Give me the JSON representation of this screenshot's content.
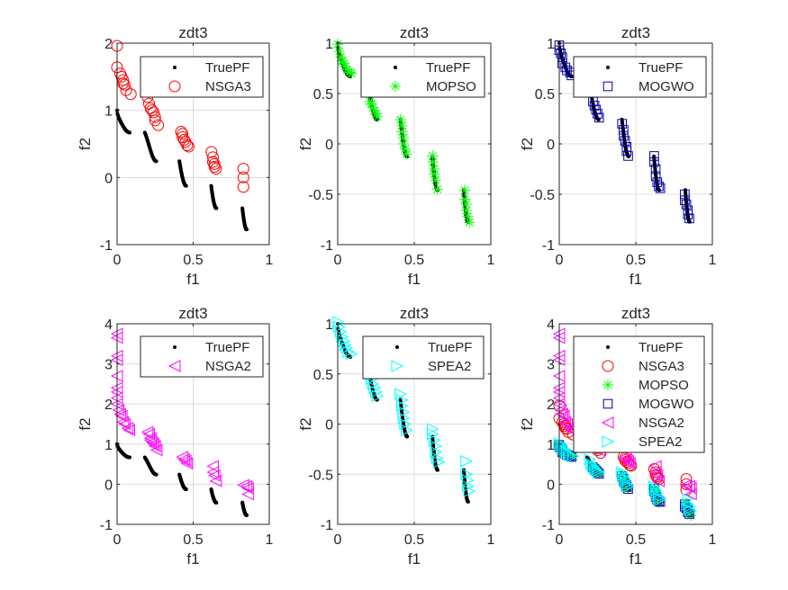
{
  "figure": {
    "background": "#ffffff"
  },
  "true_pf": {
    "label": "TruePF",
    "color": "#000000",
    "function": "f2 = 1 - sqrt(f1) - f1*sin(10*pi*f1)",
    "segments_f1": [
      [
        0.0,
        0.083
      ],
      [
        0.1822,
        0.2578
      ],
      [
        0.4093,
        0.4539
      ],
      [
        0.6184,
        0.6525
      ],
      [
        0.8233,
        0.8518
      ]
    ]
  },
  "algorithms": {
    "NSGA3": {
      "label": "NSGA3",
      "marker": "circle",
      "color": "#ff0000",
      "points": [
        [
          0.0,
          1.96
        ],
        [
          0.0,
          1.64
        ],
        [
          0.02,
          1.55
        ],
        [
          0.03,
          1.5
        ],
        [
          0.04,
          1.45
        ],
        [
          0.04,
          1.4
        ],
        [
          0.05,
          1.38
        ],
        [
          0.06,
          1.3
        ],
        [
          0.09,
          1.24
        ],
        [
          0.2,
          1.2
        ],
        [
          0.21,
          1.1
        ],
        [
          0.22,
          1.03
        ],
        [
          0.23,
          1.0
        ],
        [
          0.24,
          0.97
        ],
        [
          0.25,
          0.9
        ],
        [
          0.25,
          0.85
        ],
        [
          0.27,
          0.78
        ],
        [
          0.42,
          0.68
        ],
        [
          0.43,
          0.65
        ],
        [
          0.43,
          0.6
        ],
        [
          0.44,
          0.56
        ],
        [
          0.45,
          0.53
        ],
        [
          0.46,
          0.48
        ],
        [
          0.47,
          0.46
        ],
        [
          0.62,
          0.38
        ],
        [
          0.63,
          0.3
        ],
        [
          0.63,
          0.23
        ],
        [
          0.64,
          0.2
        ],
        [
          0.64,
          0.16
        ],
        [
          0.65,
          0.13
        ],
        [
          0.83,
          0.13
        ],
        [
          0.83,
          0.0
        ],
        [
          0.83,
          -0.14
        ]
      ]
    },
    "MOPSO": {
      "label": "MOPSO",
      "marker": "star",
      "color": "#00ff00",
      "points": [
        [
          0.0,
          0.99
        ],
        [
          0.01,
          0.92
        ],
        [
          0.02,
          0.86
        ],
        [
          0.03,
          0.82
        ],
        [
          0.04,
          0.8
        ],
        [
          0.05,
          0.77
        ],
        [
          0.06,
          0.74
        ],
        [
          0.08,
          0.71
        ],
        [
          0.09,
          0.7
        ],
        [
          0.21,
          0.42
        ],
        [
          0.22,
          0.4
        ],
        [
          0.23,
          0.36
        ],
        [
          0.24,
          0.33
        ],
        [
          0.25,
          0.3
        ],
        [
          0.26,
          0.27
        ],
        [
          0.41,
          0.24
        ],
        [
          0.42,
          0.18
        ],
        [
          0.42,
          0.12
        ],
        [
          0.43,
          0.06
        ],
        [
          0.43,
          0.0
        ],
        [
          0.44,
          -0.05
        ],
        [
          0.45,
          -0.1
        ],
        [
          0.62,
          -0.12
        ],
        [
          0.62,
          -0.18
        ],
        [
          0.63,
          -0.25
        ],
        [
          0.63,
          -0.3
        ],
        [
          0.64,
          -0.36
        ],
        [
          0.65,
          -0.45
        ],
        [
          0.83,
          -0.46
        ],
        [
          0.83,
          -0.55
        ],
        [
          0.84,
          -0.6
        ],
        [
          0.84,
          -0.66
        ],
        [
          0.85,
          -0.72
        ],
        [
          0.86,
          -0.78
        ]
      ]
    },
    "MOGWO": {
      "label": "MOGWO",
      "marker": "square",
      "color": "#0000aa",
      "points": [
        [
          0.0,
          0.98
        ],
        [
          0.0,
          0.93
        ],
        [
          0.01,
          0.9
        ],
        [
          0.02,
          0.86
        ],
        [
          0.02,
          0.8
        ],
        [
          0.04,
          0.76
        ],
        [
          0.05,
          0.73
        ],
        [
          0.07,
          0.71
        ],
        [
          0.08,
          0.68
        ],
        [
          0.22,
          0.42
        ],
        [
          0.23,
          0.38
        ],
        [
          0.24,
          0.34
        ],
        [
          0.25,
          0.3
        ],
        [
          0.26,
          0.26
        ],
        [
          0.41,
          0.2
        ],
        [
          0.42,
          0.14
        ],
        [
          0.42,
          0.08
        ],
        [
          0.43,
          0.03
        ],
        [
          0.44,
          -0.03
        ],
        [
          0.44,
          -0.07
        ],
        [
          0.45,
          -0.12
        ],
        [
          0.62,
          -0.12
        ],
        [
          0.62,
          -0.18
        ],
        [
          0.63,
          -0.25
        ],
        [
          0.63,
          -0.32
        ],
        [
          0.64,
          -0.38
        ],
        [
          0.65,
          -0.42
        ],
        [
          0.66,
          -0.44
        ],
        [
          0.82,
          -0.5
        ],
        [
          0.82,
          -0.56
        ],
        [
          0.83,
          -0.6
        ],
        [
          0.84,
          -0.66
        ],
        [
          0.84,
          -0.7
        ],
        [
          0.85,
          -0.74
        ]
      ]
    },
    "NSGA2": {
      "label": "NSGA2",
      "marker": "triangle-left",
      "color": "#ff00ff",
      "points": [
        [
          0.0,
          3.75
        ],
        [
          0.0,
          3.65
        ],
        [
          0.0,
          3.2
        ],
        [
          0.0,
          3.1
        ],
        [
          0.0,
          2.7
        ],
        [
          0.0,
          2.4
        ],
        [
          0.0,
          2.3
        ],
        [
          0.0,
          2.15
        ],
        [
          0.0,
          2.0
        ],
        [
          0.01,
          1.85
        ],
        [
          0.02,
          1.75
        ],
        [
          0.03,
          1.7
        ],
        [
          0.04,
          1.55
        ],
        [
          0.05,
          1.5
        ],
        [
          0.07,
          1.4
        ],
        [
          0.08,
          1.35
        ],
        [
          0.2,
          1.3
        ],
        [
          0.21,
          1.25
        ],
        [
          0.22,
          1.15
        ],
        [
          0.22,
          1.1
        ],
        [
          0.23,
          1.05
        ],
        [
          0.24,
          1.0
        ],
        [
          0.25,
          0.95
        ],
        [
          0.26,
          0.85
        ],
        [
          0.43,
          0.68
        ],
        [
          0.44,
          0.62
        ],
        [
          0.45,
          0.58
        ],
        [
          0.46,
          0.52
        ],
        [
          0.63,
          0.45
        ],
        [
          0.63,
          0.3
        ],
        [
          0.64,
          0.22
        ],
        [
          0.65,
          0.08
        ],
        [
          0.83,
          -0.02
        ],
        [
          0.85,
          -0.05
        ],
        [
          0.86,
          -0.1
        ],
        [
          0.86,
          -0.25
        ]
      ]
    },
    "SPEA2": {
      "label": "SPEA2",
      "marker": "triangle-right",
      "color": "#00ffff",
      "points": [
        [
          0.0,
          1.02
        ],
        [
          0.01,
          0.97
        ],
        [
          0.02,
          0.92
        ],
        [
          0.03,
          0.87
        ],
        [
          0.04,
          0.83
        ],
        [
          0.05,
          0.79
        ],
        [
          0.06,
          0.76
        ],
        [
          0.07,
          0.72
        ],
        [
          0.09,
          0.7
        ],
        [
          0.2,
          0.62
        ],
        [
          0.21,
          0.5
        ],
        [
          0.22,
          0.45
        ],
        [
          0.23,
          0.4
        ],
        [
          0.24,
          0.36
        ],
        [
          0.25,
          0.32
        ],
        [
          0.26,
          0.28
        ],
        [
          0.41,
          0.3
        ],
        [
          0.42,
          0.24
        ],
        [
          0.42,
          0.18
        ],
        [
          0.43,
          0.12
        ],
        [
          0.43,
          0.06
        ],
        [
          0.44,
          0.0
        ],
        [
          0.45,
          -0.06
        ],
        [
          0.62,
          -0.05
        ],
        [
          0.62,
          -0.1
        ],
        [
          0.63,
          -0.16
        ],
        [
          0.64,
          -0.22
        ],
        [
          0.64,
          -0.28
        ],
        [
          0.65,
          -0.34
        ],
        [
          0.66,
          -0.38
        ],
        [
          0.84,
          -0.37
        ],
        [
          0.84,
          -0.5
        ],
        [
          0.85,
          -0.56
        ],
        [
          0.85,
          -0.62
        ],
        [
          0.86,
          -0.67
        ]
      ]
    }
  },
  "chart_data": [
    {
      "type": "scatter",
      "title": "zdt3",
      "xlabel": "f1",
      "ylabel": "f2",
      "xlim": [
        0,
        1
      ],
      "ylim": [
        -1,
        2
      ],
      "xticks": [
        "0",
        "0.5",
        "1"
      ],
      "yticks": [
        "-1",
        "0",
        "1",
        "2"
      ],
      "xtick_values": [
        0,
        0.5,
        1
      ],
      "ytick_values": [
        -1,
        0,
        1,
        2
      ],
      "grid": true,
      "legend": "top-right",
      "series": [
        "TruePF",
        "NSGA3"
      ]
    },
    {
      "type": "scatter",
      "title": "zdt3",
      "xlabel": "f1",
      "ylabel": "f2",
      "xlim": [
        0,
        1
      ],
      "ylim": [
        -1,
        1
      ],
      "xticks": [
        "0",
        "0.5",
        "1"
      ],
      "yticks": [
        "-1",
        "-0.5",
        "0",
        "0.5",
        "1"
      ],
      "xtick_values": [
        0,
        0.5,
        1
      ],
      "ytick_values": [
        -1,
        -0.5,
        0,
        0.5,
        1
      ],
      "grid": true,
      "legend": "top-right",
      "series": [
        "TruePF",
        "MOPSO"
      ]
    },
    {
      "type": "scatter",
      "title": "zdt3",
      "xlabel": "f1",
      "ylabel": "f2",
      "xlim": [
        0,
        1
      ],
      "ylim": [
        -1,
        1
      ],
      "xticks": [
        "0",
        "0.5",
        "1"
      ],
      "yticks": [
        "-1",
        "-0.5",
        "0",
        "0.5",
        "1"
      ],
      "xtick_values": [
        0,
        0.5,
        1
      ],
      "ytick_values": [
        -1,
        -0.5,
        0,
        0.5,
        1
      ],
      "grid": true,
      "legend": "top-right",
      "series": [
        "TruePF",
        "MOGWO"
      ]
    },
    {
      "type": "scatter",
      "title": "zdt3",
      "xlabel": "f1",
      "ylabel": "f2",
      "xlim": [
        0,
        1
      ],
      "ylim": [
        -1,
        4
      ],
      "xticks": [
        "0",
        "0.5",
        "1"
      ],
      "yticks": [
        "-1",
        "0",
        "1",
        "2",
        "3",
        "4"
      ],
      "xtick_values": [
        0,
        0.5,
        1
      ],
      "ytick_values": [
        -1,
        0,
        1,
        2,
        3,
        4
      ],
      "grid": true,
      "legend": "top-right",
      "series": [
        "TruePF",
        "NSGA2"
      ]
    },
    {
      "type": "scatter",
      "title": "zdt3",
      "xlabel": "f1",
      "ylabel": "f2",
      "xlim": [
        0,
        1
      ],
      "ylim": [
        -1,
        1
      ],
      "xticks": [
        "0",
        "0.5",
        "1"
      ],
      "yticks": [
        "-1",
        "-0.5",
        "0",
        "0.5",
        "1"
      ],
      "xtick_values": [
        0,
        0.5,
        1
      ],
      "ytick_values": [
        -1,
        -0.5,
        0,
        0.5,
        1
      ],
      "grid": true,
      "legend": "top-right",
      "series": [
        "TruePF",
        "SPEA2"
      ]
    },
    {
      "type": "scatter",
      "title": "zdt3",
      "xlabel": "f1",
      "ylabel": "f2",
      "xlim": [
        0,
        1
      ],
      "ylim": [
        -1,
        4
      ],
      "xticks": [
        "0",
        "0.5",
        "1"
      ],
      "yticks": [
        "-1",
        "0",
        "1",
        "2",
        "3",
        "4"
      ],
      "xtick_values": [
        0,
        0.5,
        1
      ],
      "ytick_values": [
        -1,
        0,
        1,
        2,
        3,
        4
      ],
      "grid": true,
      "legend": "top-right",
      "series": [
        "TruePF",
        "NSGA3",
        "MOPSO",
        "MOGWO",
        "NSGA2",
        "SPEA2"
      ]
    }
  ]
}
